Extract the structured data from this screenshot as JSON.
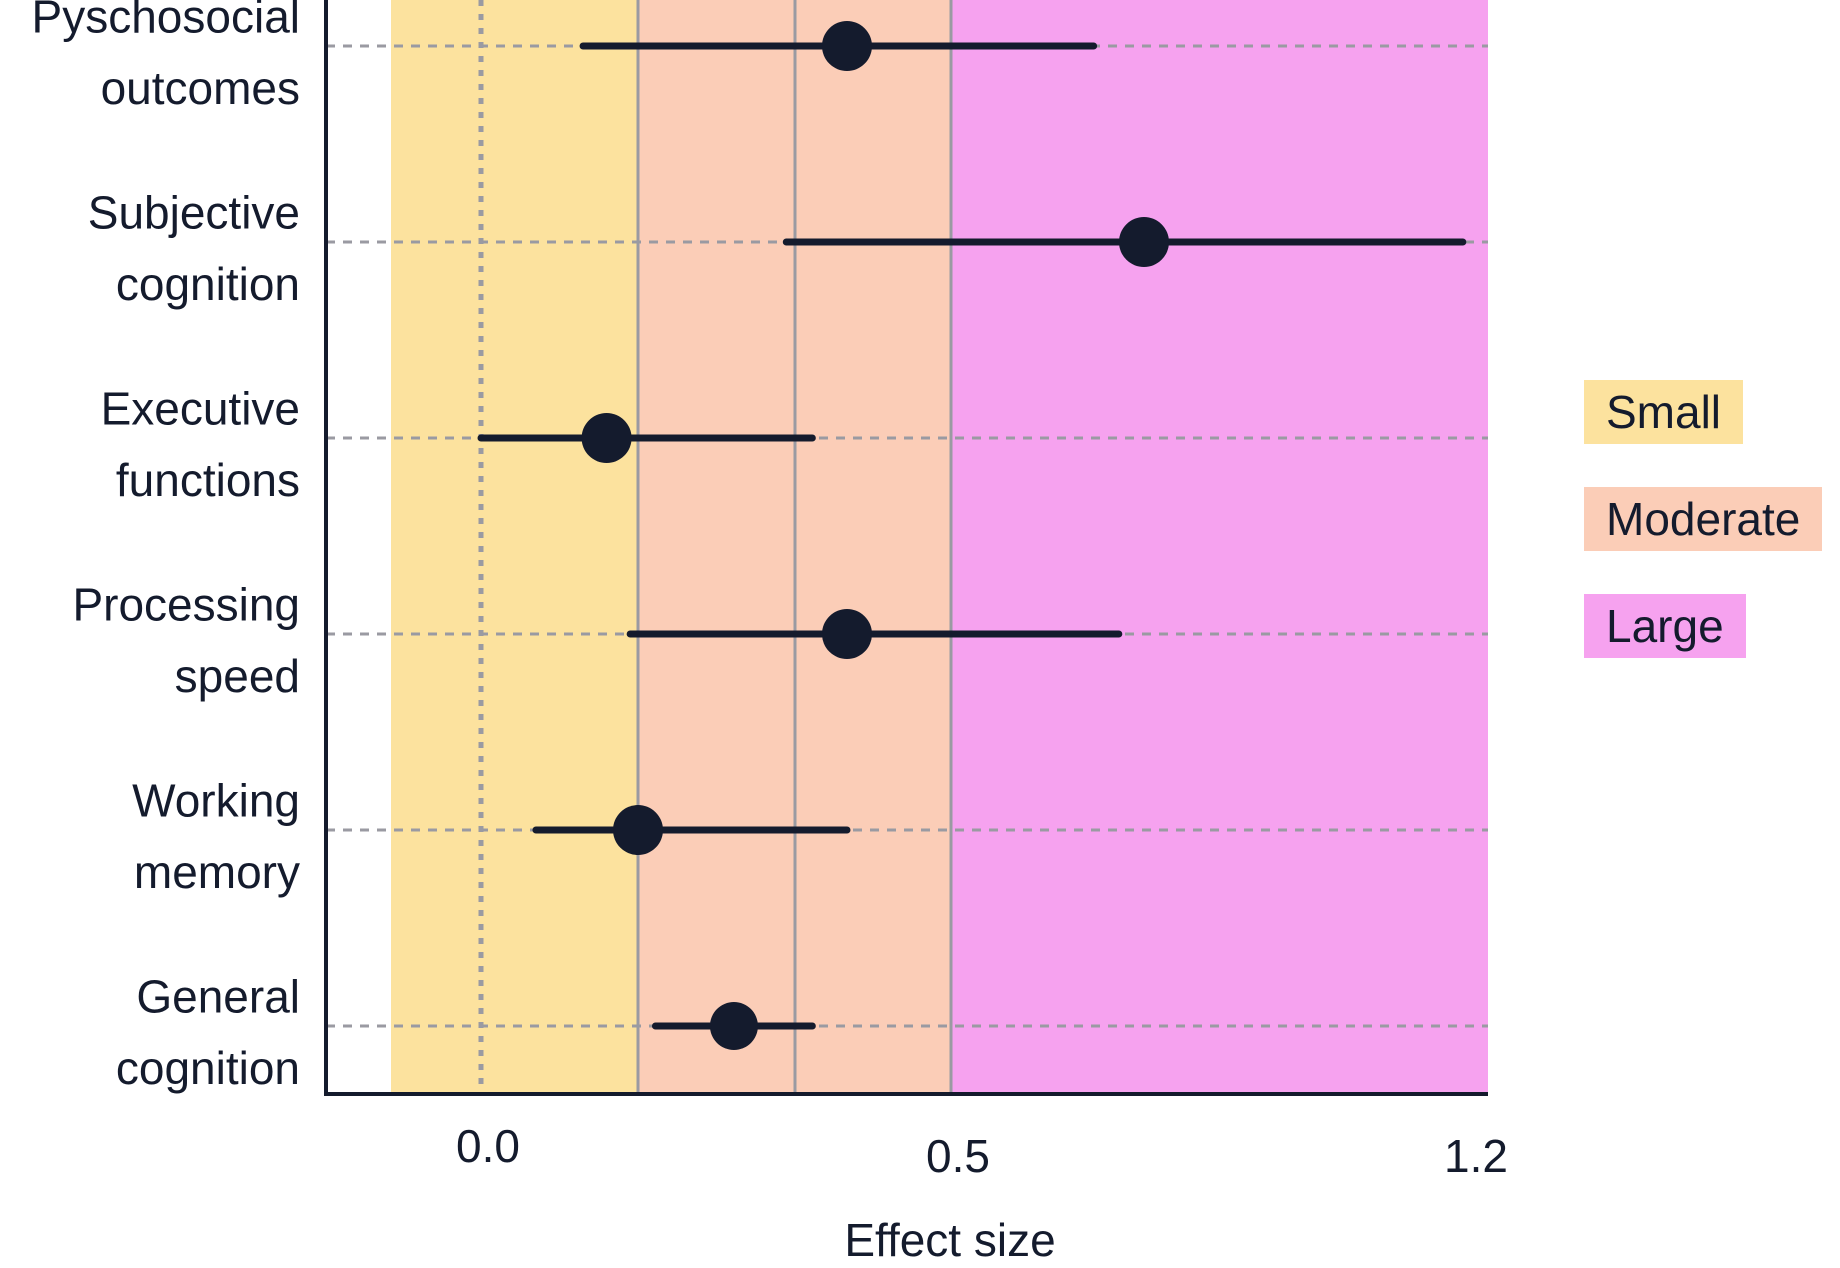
{
  "chart_data": {
    "type": "forest",
    "title": "",
    "xlabel": "Effect size",
    "ylabel": "",
    "x_ticks": [
      {
        "value": 0.0,
        "label": "0.0"
      },
      {
        "value": 0.5,
        "label": "0.5"
      },
      {
        "value": 1.2,
        "label": "1.2"
      }
    ],
    "rows": [
      {
        "label_lines": [
          "Pyschosocial",
          "outcomes"
        ],
        "estimate": 0.44,
        "ci": [
          0.13,
          0.73
        ]
      },
      {
        "label_lines": [
          "Subjective",
          "cognition"
        ],
        "estimate": 0.79,
        "ci": [
          0.37,
          1.17
        ]
      },
      {
        "label_lines": [
          "Executive",
          "functions"
        ],
        "estimate": 0.16,
        "ci": [
          0.0,
          0.4
        ]
      },
      {
        "label_lines": [
          "Processing",
          "speed"
        ],
        "estimate": 0.44,
        "ci": [
          0.19,
          0.76
        ]
      },
      {
        "label_lines": [
          "Working",
          "memory"
        ],
        "estimate": 0.2,
        "ci": [
          0.07,
          0.44
        ]
      },
      {
        "label_lines": [
          "General",
          "cognition"
        ],
        "estimate": 0.31,
        "ci": [
          0.22,
          0.4
        ]
      }
    ],
    "zones": [
      {
        "name": "Small",
        "from": -0.1,
        "to": 0.2,
        "color": "#fce29e"
      },
      {
        "name": "Moderate",
        "from": 0.2,
        "to": 0.56,
        "color": "#fbcdb7"
      },
      {
        "name": "Large",
        "from": 0.56,
        "to": 1.2,
        "color": "#f6a2ef"
      }
    ],
    "reference_lines": [
      {
        "value": 0.0,
        "style": "dotted"
      },
      {
        "value": 0.2,
        "style": "solid"
      },
      {
        "value": 0.38,
        "style": "solid"
      },
      {
        "value": 0.56,
        "style": "solid"
      }
    ],
    "legend_position": "right",
    "row_gridlines": "dashed"
  }
}
